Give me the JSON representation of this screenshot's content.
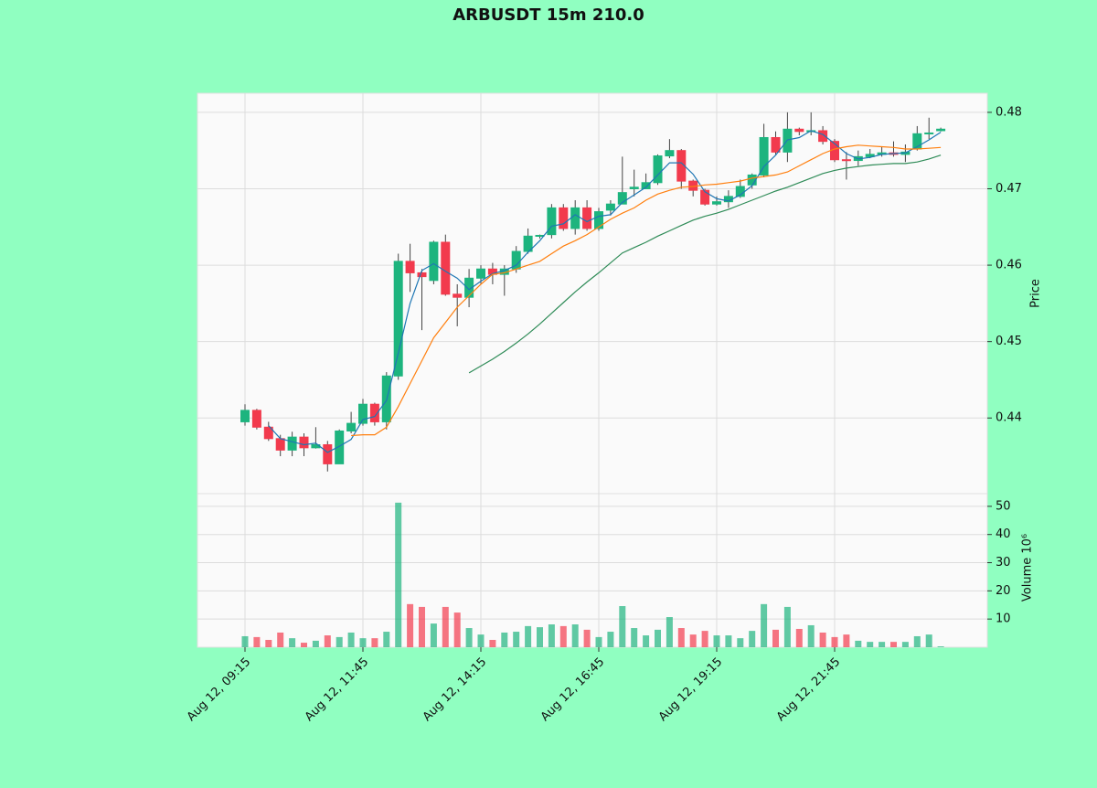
{
  "chart_data": {
    "type": "candlestick",
    "title": "ARBUSDT 15m 210.0",
    "ylabel": "Price",
    "categories": [
      "Aug 12, 09:15",
      null,
      null,
      null,
      null,
      null,
      null,
      null,
      null,
      null,
      "Aug 12, 11:45",
      null,
      null,
      null,
      null,
      null,
      null,
      null,
      null,
      null,
      "Aug 12, 14:15",
      null,
      null,
      null,
      null,
      null,
      null,
      null,
      null,
      null,
      "Aug 12, 16:45",
      null,
      null,
      null,
      null,
      null,
      null,
      null,
      null,
      null,
      "Aug 12, 19:15",
      null,
      null,
      null,
      null,
      null,
      null,
      null,
      null,
      null,
      "Aug 12, 21:45",
      null,
      null,
      null,
      null,
      null,
      null,
      null,
      null,
      null
    ],
    "open": [
      0.4395,
      0.441,
      0.4388,
      0.4373,
      0.4358,
      0.4375,
      0.4361,
      0.4365,
      0.434,
      0.4383,
      0.4393,
      0.4418,
      0.4395,
      0.4455,
      0.4605,
      0.459,
      0.458,
      0.463,
      0.4562,
      0.4558,
      0.4583,
      0.4595,
      0.4588,
      0.4595,
      0.4618,
      0.4638,
      0.464,
      0.4675,
      0.4648,
      0.4675,
      0.4648,
      0.4672,
      0.468,
      0.47,
      0.47,
      0.4708,
      0.4743,
      0.475,
      0.471,
      0.4698,
      0.468,
      0.4683,
      0.469,
      0.4705,
      0.4718,
      0.4767,
      0.4748,
      0.4778,
      0.4775,
      0.4776,
      0.4762,
      0.4738,
      0.4737,
      0.4742,
      0.4745,
      0.4747,
      0.4745,
      0.4752,
      0.4772,
      0.4776
    ],
    "high": [
      0.4418,
      0.4412,
      0.4395,
      0.4378,
      0.4382,
      0.438,
      0.4388,
      0.437,
      0.4385,
      0.4408,
      0.4425,
      0.442,
      0.446,
      0.4615,
      0.4628,
      0.4595,
      0.4632,
      0.464,
      0.4575,
      0.4595,
      0.46,
      0.4603,
      0.46,
      0.4625,
      0.4648,
      0.464,
      0.468,
      0.468,
      0.4685,
      0.4685,
      0.4675,
      0.4685,
      0.4742,
      0.4725,
      0.472,
      0.4745,
      0.4765,
      0.4752,
      0.4712,
      0.47,
      0.469,
      0.4698,
      0.4712,
      0.472,
      0.4785,
      0.4775,
      0.48,
      0.478,
      0.48,
      0.4782,
      0.4765,
      0.4748,
      0.475,
      0.4752,
      0.4755,
      0.4762,
      0.4758,
      0.4782,
      0.4793,
      0.478
    ],
    "low": [
      0.439,
      0.4385,
      0.437,
      0.435,
      0.435,
      0.435,
      0.436,
      0.433,
      0.434,
      0.438,
      0.439,
      0.439,
      0.4385,
      0.445,
      0.4565,
      0.4515,
      0.4575,
      0.456,
      0.452,
      0.4545,
      0.4575,
      0.4575,
      0.456,
      0.459,
      0.4615,
      0.4635,
      0.4635,
      0.4645,
      0.464,
      0.4645,
      0.4645,
      0.4665,
      0.468,
      0.469,
      0.47,
      0.4705,
      0.474,
      0.47,
      0.469,
      0.4678,
      0.4678,
      0.4675,
      0.4688,
      0.47,
      0.4715,
      0.4745,
      0.4735,
      0.477,
      0.477,
      0.4758,
      0.4735,
      0.4712,
      0.473,
      0.474,
      0.4742,
      0.4742,
      0.4735,
      0.475,
      0.4765,
      0.4775
    ],
    "close": [
      0.441,
      0.4388,
      0.4373,
      0.4358,
      0.4375,
      0.4361,
      0.4365,
      0.434,
      0.4383,
      0.4393,
      0.4418,
      0.4395,
      0.4455,
      0.4605,
      0.459,
      0.4585,
      0.463,
      0.4562,
      0.4558,
      0.4583,
      0.4595,
      0.4588,
      0.4595,
      0.4618,
      0.4638,
      0.4639,
      0.4675,
      0.4648,
      0.4675,
      0.4648,
      0.467,
      0.468,
      0.4695,
      0.4702,
      0.4708,
      0.4743,
      0.475,
      0.471,
      0.4698,
      0.468,
      0.4683,
      0.469,
      0.4703,
      0.4718,
      0.4767,
      0.4748,
      0.4778,
      0.4775,
      0.4776,
      0.4762,
      0.4738,
      0.4737,
      0.4742,
      0.4745,
      0.4747,
      0.4745,
      0.4748,
      0.4772,
      0.4773,
      0.4778
    ],
    "up_color": "#1db47e",
    "down_color": "#f23a4d",
    "ylim": [
      0.4301,
      0.4825
    ],
    "yticks": [
      0.44,
      0.45,
      0.46,
      0.47,
      0.48
    ],
    "grid": true,
    "moving_averages": [
      {
        "color": "#1f77b4",
        "values": [
          null,
          null,
          0.439,
          0.4373,
          0.4369,
          0.4365,
          0.4367,
          0.4355,
          0.4363,
          0.4372,
          0.4398,
          0.4402,
          0.4423,
          0.4485,
          0.455,
          0.4593,
          0.4602,
          0.4592,
          0.4583,
          0.4568,
          0.4579,
          0.4589,
          0.4593,
          0.46,
          0.4617,
          0.4632,
          0.4651,
          0.4654,
          0.4666,
          0.4657,
          0.4664,
          0.4666,
          0.4682,
          0.4692,
          0.4702,
          0.4718,
          0.4734,
          0.4734,
          0.4719,
          0.4696,
          0.4687,
          0.4684,
          0.4692,
          0.4704,
          0.4729,
          0.4744,
          0.4764,
          0.4767,
          0.4776,
          0.4771,
          0.4759,
          0.4746,
          0.4739,
          0.4741,
          0.4745,
          0.4746,
          0.4747,
          0.4755,
          0.4764,
          0.4774
        ]
      },
      {
        "color": "#ff7f0e",
        "values": [
          null,
          null,
          null,
          null,
          null,
          null,
          null,
          null,
          null,
          0.4377,
          0.4378,
          0.4378,
          0.4388,
          0.4415,
          0.4445,
          0.4475,
          0.4505,
          0.4525,
          0.4545,
          0.456,
          0.4575,
          0.4588,
          0.459,
          0.4595,
          0.46,
          0.4605,
          0.4615,
          0.4625,
          0.4632,
          0.464,
          0.465,
          0.466,
          0.4668,
          0.4675,
          0.4685,
          0.4693,
          0.4698,
          0.4702,
          0.4703,
          0.4705,
          0.4706,
          0.4708,
          0.471,
          0.4714,
          0.4716,
          0.4718,
          0.4722,
          0.473,
          0.4738,
          0.4746,
          0.4752,
          0.4755,
          0.4757,
          0.4756,
          0.4755,
          0.4754,
          0.4752,
          0.4752,
          0.4753,
          0.4754
        ]
      },
      {
        "color": "#2e8b57",
        "values": [
          null,
          null,
          null,
          null,
          null,
          null,
          null,
          null,
          null,
          null,
          null,
          null,
          null,
          null,
          null,
          null,
          null,
          null,
          null,
          0.4459,
          0.4468,
          0.4477,
          0.4487,
          0.4498,
          0.451,
          0.4523,
          0.4537,
          0.4551,
          0.4565,
          0.4578,
          0.459,
          0.4603,
          0.4616,
          0.4623,
          0.463,
          0.4638,
          0.4645,
          0.4652,
          0.4659,
          0.4664,
          0.4668,
          0.4673,
          0.4679,
          0.4685,
          0.4691,
          0.4697,
          0.4702,
          0.4708,
          0.4714,
          0.472,
          0.4724,
          0.4727,
          0.4729,
          0.4731,
          0.4732,
          0.4733,
          0.4733,
          0.4735,
          0.4739,
          0.4744
        ]
      }
    ],
    "volume": {
      "ylabel": "Volume  10⁶",
      "values": [
        3.9,
        3.6,
        2.6,
        5.2,
        3.2,
        1.6,
        2.3,
        4.2,
        3.6,
        5.2,
        3.2,
        3.2,
        5.5,
        51.3,
        15.3,
        14.3,
        8.4,
        14.3,
        12.3,
        6.8,
        4.5,
        2.6,
        5.2,
        5.5,
        7.5,
        7.1,
        8.1,
        7.5,
        8.1,
        6.2,
        3.6,
        5.5,
        14.6,
        6.8,
        4.2,
        6.2,
        10.7,
        6.8,
        4.5,
        5.8,
        4.2,
        4.2,
        3.2,
        5.8,
        15.3,
        6.2,
        14.3,
        6.5,
        7.8,
        5.2,
        3.6,
        4.5,
        2.3,
        1.9,
        1.9,
        1.9,
        1.9,
        3.9,
        4.5,
        0.3
      ],
      "ylim": [
        0,
        54.5
      ],
      "yticks": [
        10,
        20,
        30,
        40,
        50
      ]
    }
  }
}
